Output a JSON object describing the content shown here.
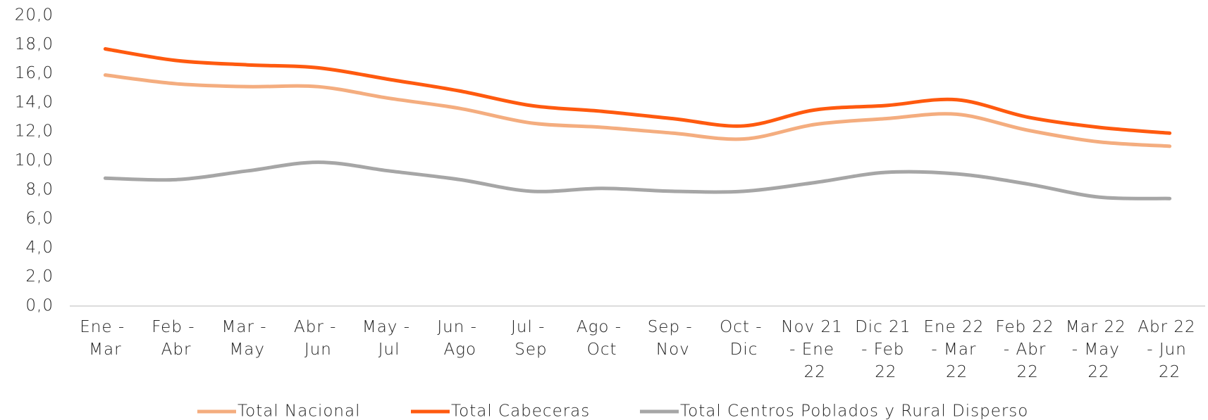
{
  "chart_data": {
    "type": "line",
    "categories": [
      "Ene - Mar",
      "Feb - Abr",
      "Mar - May",
      "Abr - Jun",
      "May - Jul",
      "Jun - Ago",
      "Jul - Sep",
      "Ago - Oct",
      "Sep - Nov",
      "Oct - Dic",
      "Nov 21 - Ene 22",
      "Dic 21 - Feb 22",
      "Ene 22 - Mar 22",
      "Feb 22 - Abr 22",
      "Mar 22 - May 22",
      "Abr 22 - Jun 22"
    ],
    "series": [
      {
        "name": "Total Nacional",
        "color": "#f4ad7f",
        "values": [
          15.9,
          15.3,
          15.1,
          15.1,
          14.3,
          13.6,
          12.6,
          12.3,
          11.9,
          11.5,
          12.5,
          12.9,
          13.2,
          12.1,
          11.3,
          11.0
        ]
      },
      {
        "name": "Total Cabeceras",
        "color": "#ff5a0f",
        "values": [
          17.7,
          16.9,
          16.6,
          16.4,
          15.6,
          14.8,
          13.8,
          13.4,
          12.9,
          12.4,
          13.5,
          13.8,
          14.2,
          13.0,
          12.3,
          11.9
        ]
      },
      {
        "name": "Total Centros Poblados y Rural Disperso",
        "color": "#a6a6a6",
        "values": [
          8.8,
          8.7,
          9.3,
          9.9,
          9.3,
          8.7,
          7.9,
          8.1,
          7.9,
          7.9,
          8.5,
          9.2,
          9.1,
          8.4,
          7.5,
          7.4
        ]
      }
    ],
    "ylim": [
      0,
      20
    ],
    "yticks": [
      {
        "value": 0,
        "label": "0,0"
      },
      {
        "value": 2,
        "label": "2,0"
      },
      {
        "value": 4,
        "label": "4,0"
      },
      {
        "value": 6,
        "label": "6,0"
      },
      {
        "value": 8,
        "label": "8,0"
      },
      {
        "value": 10,
        "label": "10,0"
      },
      {
        "value": 12,
        "label": "12,0"
      },
      {
        "value": 14,
        "label": "14,0"
      },
      {
        "value": 16,
        "label": "16,0"
      },
      {
        "value": 18,
        "label": "18,0"
      },
      {
        "value": 20,
        "label": "20,0"
      }
    ],
    "legend": "bottom"
  }
}
